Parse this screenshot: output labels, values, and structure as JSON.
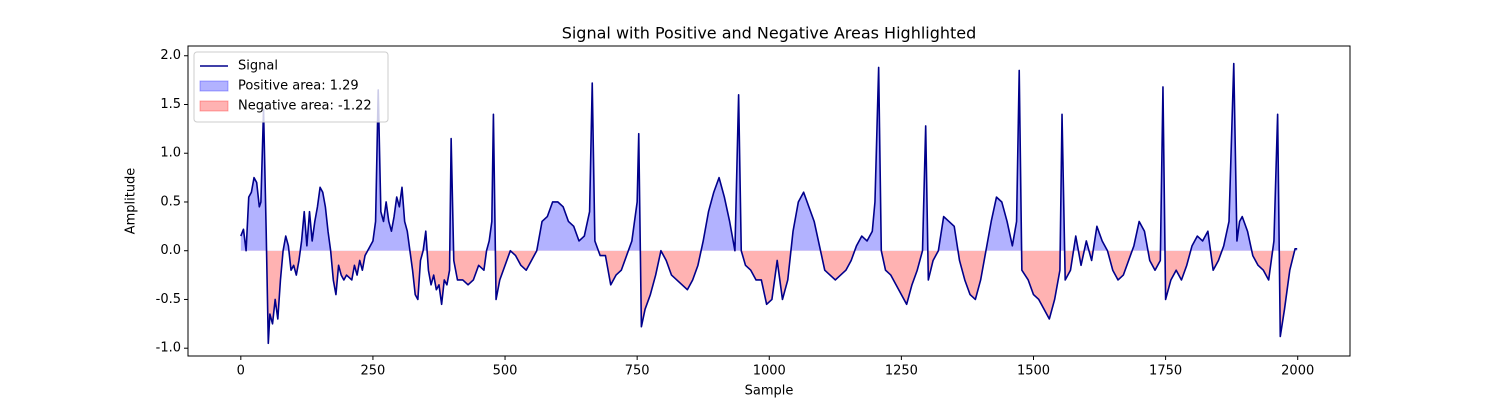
{
  "chart_data": {
    "type": "line",
    "title": "Signal with Positive and Negative Areas Highlighted",
    "x_label": "Sample",
    "y_label": "Amplitude",
    "xlim": [
      -99.95,
      2098.95
    ],
    "ylim": [
      -1.08,
      2.1
    ],
    "xticks": [
      0,
      250,
      500,
      750,
      1000,
      1250,
      1500,
      1750,
      2000
    ],
    "yticks": [
      {
        "value": -1,
        "label": "-1.0"
      },
      -0.5,
      {
        "value": 0,
        "label": "0.0"
      },
      0.5,
      {
        "value": 1,
        "label": "1.0"
      },
      1.5,
      {
        "value": 2,
        "label": "2.0"
      }
    ],
    "legend": "upper left",
    "x": [
      0,
      5,
      10,
      15,
      20,
      25,
      30,
      35,
      38,
      43,
      48,
      52,
      55,
      60,
      65,
      70,
      75,
      80,
      85,
      90,
      95,
      100,
      105,
      110,
      115,
      120,
      125,
      130,
      135,
      140,
      145,
      150,
      155,
      160,
      165,
      170,
      175,
      180,
      185,
      190,
      195,
      200,
      210,
      215,
      220,
      225,
      230,
      235,
      240,
      245,
      250,
      255,
      260,
      265,
      270,
      275,
      280,
      285,
      290,
      295,
      300,
      305,
      310,
      315,
      320,
      325,
      330,
      335,
      340,
      345,
      350,
      355,
      360,
      365,
      370,
      375,
      380,
      385,
      390,
      395,
      398,
      403,
      410,
      420,
      430,
      440,
      450,
      460,
      465,
      470,
      475,
      478,
      483,
      490,
      500,
      510,
      520,
      530,
      540,
      550,
      560,
      570,
      580,
      590,
      600,
      610,
      620,
      630,
      640,
      650,
      660,
      665,
      670,
      680,
      690,
      700,
      710,
      720,
      730,
      740,
      750,
      753,
      758,
      765,
      775,
      785,
      795,
      805,
      815,
      825,
      835,
      845,
      855,
      865,
      875,
      885,
      895,
      905,
      915,
      925,
      935,
      942,
      947,
      955,
      965,
      975,
      985,
      995,
      1005,
      1015,
      1025,
      1035,
      1045,
      1055,
      1065,
      1075,
      1085,
      1095,
      1105,
      1115,
      1125,
      1135,
      1145,
      1155,
      1165,
      1175,
      1185,
      1195,
      1200,
      1207,
      1212,
      1220,
      1230,
      1240,
      1250,
      1260,
      1270,
      1280,
      1290,
      1296,
      1301,
      1310,
      1320,
      1330,
      1340,
      1350,
      1360,
      1370,
      1380,
      1390,
      1400,
      1410,
      1420,
      1430,
      1440,
      1450,
      1460,
      1468,
      1473,
      1478,
      1490,
      1500,
      1510,
      1520,
      1530,
      1540,
      1550,
      1554,
      1560,
      1570,
      1580,
      1590,
      1600,
      1610,
      1620,
      1630,
      1640,
      1650,
      1660,
      1670,
      1680,
      1690,
      1700,
      1710,
      1720,
      1730,
      1740,
      1745,
      1750,
      1760,
      1770,
      1780,
      1790,
      1800,
      1810,
      1820,
      1830,
      1840,
      1850,
      1860,
      1870,
      1879,
      1885,
      1890,
      1895,
      1905,
      1915,
      1925,
      1935,
      1945,
      1955,
      1962,
      1967,
      1975,
      1985,
      1995,
      1999
    ],
    "series": [
      {
        "name": "Signal",
        "color": "#00008b",
        "values": [
          0.15,
          0.22,
          0.0,
          0.55,
          0.6,
          0.75,
          0.7,
          0.45,
          0.5,
          1.45,
          0.2,
          -0.95,
          -0.65,
          -0.75,
          -0.5,
          -0.7,
          -0.3,
          0.0,
          0.15,
          0.05,
          -0.2,
          -0.15,
          -0.25,
          -0.1,
          0.1,
          0.4,
          0.05,
          0.4,
          0.1,
          0.3,
          0.45,
          0.65,
          0.6,
          0.45,
          0.2,
          0.0,
          -0.3,
          -0.45,
          -0.15,
          -0.25,
          -0.3,
          -0.25,
          -0.3,
          -0.15,
          -0.25,
          -0.1,
          -0.2,
          -0.05,
          0.0,
          0.05,
          0.1,
          0.3,
          1.65,
          0.4,
          0.3,
          0.5,
          0.3,
          0.2,
          0.35,
          0.55,
          0.45,
          0.65,
          0.3,
          0.2,
          0.0,
          -0.2,
          -0.45,
          -0.5,
          -0.1,
          0.0,
          0.2,
          -0.2,
          -0.35,
          -0.25,
          -0.4,
          -0.35,
          -0.55,
          -0.3,
          -0.35,
          -0.2,
          1.15,
          -0.1,
          -0.3,
          -0.3,
          -0.35,
          -0.3,
          -0.15,
          -0.2,
          0.0,
          0.1,
          0.3,
          1.4,
          -0.5,
          -0.3,
          -0.15,
          0.0,
          -0.05,
          -0.15,
          -0.2,
          -0.1,
          0.0,
          0.3,
          0.35,
          0.5,
          0.5,
          0.45,
          0.3,
          0.25,
          0.1,
          0.15,
          0.4,
          1.72,
          0.1,
          -0.05,
          -0.05,
          -0.35,
          -0.25,
          -0.2,
          -0.05,
          0.1,
          0.5,
          1.2,
          -0.78,
          -0.6,
          -0.45,
          -0.25,
          0.0,
          -0.1,
          -0.25,
          -0.3,
          -0.35,
          -0.4,
          -0.3,
          -0.15,
          0.1,
          0.4,
          0.6,
          0.75,
          0.55,
          0.3,
          0.0,
          1.6,
          0.0,
          -0.15,
          -0.2,
          -0.3,
          -0.3,
          -0.55,
          -0.5,
          -0.1,
          -0.5,
          -0.3,
          0.2,
          0.5,
          0.6,
          0.45,
          0.3,
          0.05,
          -0.2,
          -0.25,
          -0.3,
          -0.25,
          -0.2,
          -0.1,
          0.05,
          0.15,
          0.1,
          0.2,
          0.5,
          1.88,
          0.0,
          -0.2,
          -0.25,
          -0.35,
          -0.45,
          -0.55,
          -0.35,
          -0.2,
          0.0,
          1.28,
          -0.3,
          -0.1,
          0.0,
          0.35,
          0.3,
          0.25,
          -0.1,
          -0.3,
          -0.45,
          -0.5,
          -0.3,
          0.0,
          0.3,
          0.55,
          0.5,
          0.3,
          0.05,
          0.3,
          1.85,
          -0.2,
          -0.3,
          -0.45,
          -0.5,
          -0.6,
          -0.7,
          -0.5,
          -0.2,
          1.4,
          -0.3,
          -0.2,
          0.15,
          -0.15,
          0.1,
          -0.1,
          0.25,
          0.1,
          0.0,
          -0.2,
          -0.3,
          -0.25,
          -0.1,
          0.05,
          0.3,
          0.2,
          -0.1,
          -0.2,
          -0.1,
          1.68,
          -0.5,
          -0.3,
          -0.2,
          -0.3,
          -0.15,
          0.05,
          0.15,
          0.1,
          0.2,
          -0.2,
          -0.1,
          0.05,
          0.3,
          1.92,
          0.1,
          0.3,
          0.35,
          0.2,
          -0.05,
          -0.15,
          -0.2,
          -0.3,
          0.1,
          1.4,
          -0.88,
          -0.6,
          -0.2,
          0.02,
          0.02
        ]
      }
    ],
    "fills": [
      {
        "name": "Positive area: 1.29",
        "color": "#0000ff",
        "alpha": 0.3,
        "where": "above"
      },
      {
        "name": "Negative area: -1.22",
        "color": "#ff0000",
        "alpha": 0.3,
        "where": "below"
      }
    ]
  }
}
